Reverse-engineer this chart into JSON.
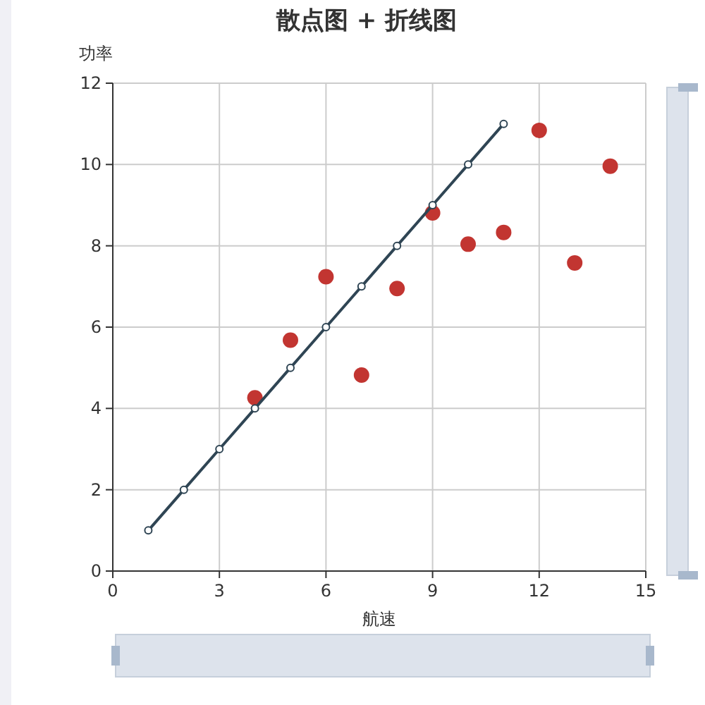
{
  "chart_data": {
    "type": "scatter",
    "title": "散点图 + 折线图",
    "xlabel": "航速",
    "ylabel": "功率",
    "xlim": [
      0,
      15
    ],
    "xticks": [
      0,
      3,
      6,
      9,
      12,
      15
    ],
    "ylim": [
      0,
      12
    ],
    "yticks": [
      0,
      2,
      4,
      6,
      8,
      10,
      12
    ],
    "grid": true,
    "series": [
      {
        "color": "#c23531",
        "marker": "circle",
        "x": [
          10,
          8,
          13,
          9,
          11,
          14,
          6,
          4,
          12,
          7,
          5
        ],
        "values": [
          8.04,
          6.95,
          7.58,
          8.81,
          8.33,
          9.96,
          7.24,
          4.26,
          10.84,
          4.82,
          5.68
        ]
      },
      {
        "type": "line",
        "color": "#2f4554",
        "marker": "circle",
        "x": [
          1,
          2,
          3,
          4,
          5,
          6,
          7,
          8,
          9,
          10,
          11
        ],
        "values": [
          1,
          2,
          3,
          4,
          5,
          6,
          7,
          8,
          9,
          10,
          11
        ]
      }
    ]
  }
}
